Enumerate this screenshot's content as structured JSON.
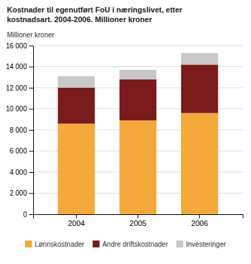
{
  "chart_data": {
    "type": "bar",
    "stacked": true,
    "title": "Kostnader til egenutført FoU i næringslivet, etter\nkostnadsart. 2004-2006. Millioner kroner",
    "y_label": "Millioner kroner",
    "categories": [
      "2004",
      "2005",
      "2006"
    ],
    "series": [
      {
        "name": "Lønnskostnader",
        "color": "#F5A83A",
        "values": [
          8600,
          8900,
          9600
        ]
      },
      {
        "name": "Andre driftskostnader",
        "color": "#7B1A1A",
        "values": [
          3400,
          3900,
          4600
        ]
      },
      {
        "name": "Investeringer",
        "color": "#C8C8C8",
        "values": [
          1100,
          900,
          1100
        ]
      }
    ],
    "ylim": [
      0,
      16000
    ],
    "yticks": [
      0,
      {
        "value": 2000,
        "label": "2 000"
      },
      {
        "value": 4000,
        "label": "4 000"
      },
      {
        "value": 6000,
        "label": "6 000"
      },
      {
        "value": 8000,
        "label": "8 000"
      },
      {
        "value": 10000,
        "label": "10 000"
      },
      {
        "value": 12000,
        "label": "12 000"
      },
      {
        "value": 14000,
        "label": "14 000"
      },
      {
        "value": 16000,
        "label": "16 000"
      }
    ],
    "grid": true,
    "legend": "bottom"
  }
}
